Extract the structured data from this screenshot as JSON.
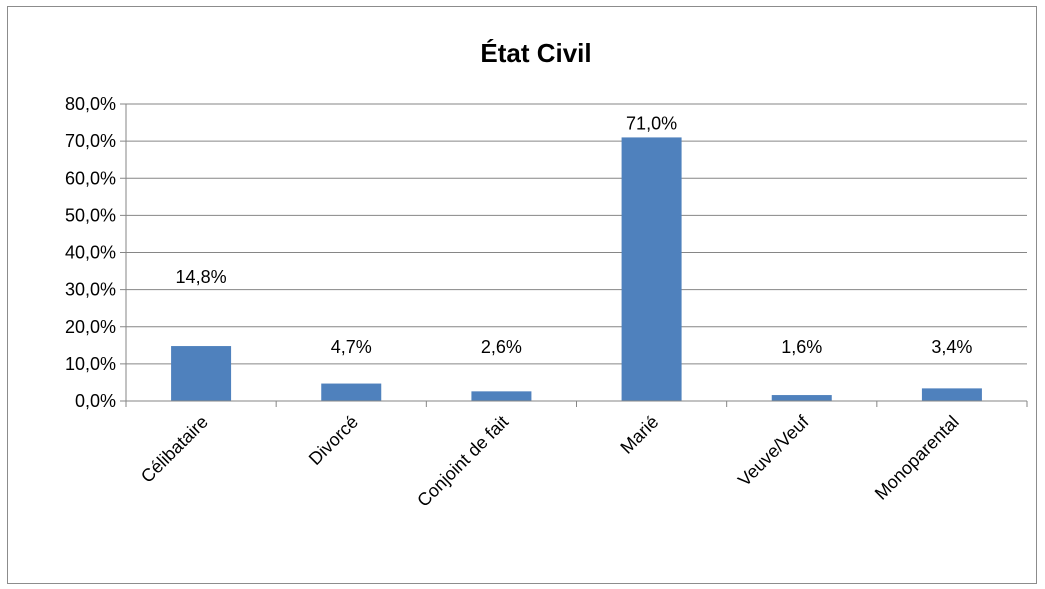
{
  "chart_data": {
    "type": "bar",
    "title": "État Civil",
    "categories": [
      "Célibataire",
      "Divorcé",
      "Conjoint de fait",
      "Marié",
      "Veuve/Veuf",
      "Monoparental"
    ],
    "values": [
      14.8,
      4.7,
      2.6,
      71.0,
      1.6,
      3.4
    ],
    "data_labels": [
      "14,8%",
      "4,7%",
      "2,6%",
      "71,0%",
      "1,6%",
      "3,4%"
    ],
    "yticks": [
      "0,0%",
      "10,0%",
      "20,0%",
      "30,0%",
      "40,0%",
      "50,0%",
      "60,0%",
      "70,0%",
      "80,0%"
    ],
    "ylim": [
      0,
      80
    ],
    "ylabel": "",
    "xlabel": "",
    "grid": true,
    "legend": "none",
    "bar_color": "#4f81bd"
  }
}
